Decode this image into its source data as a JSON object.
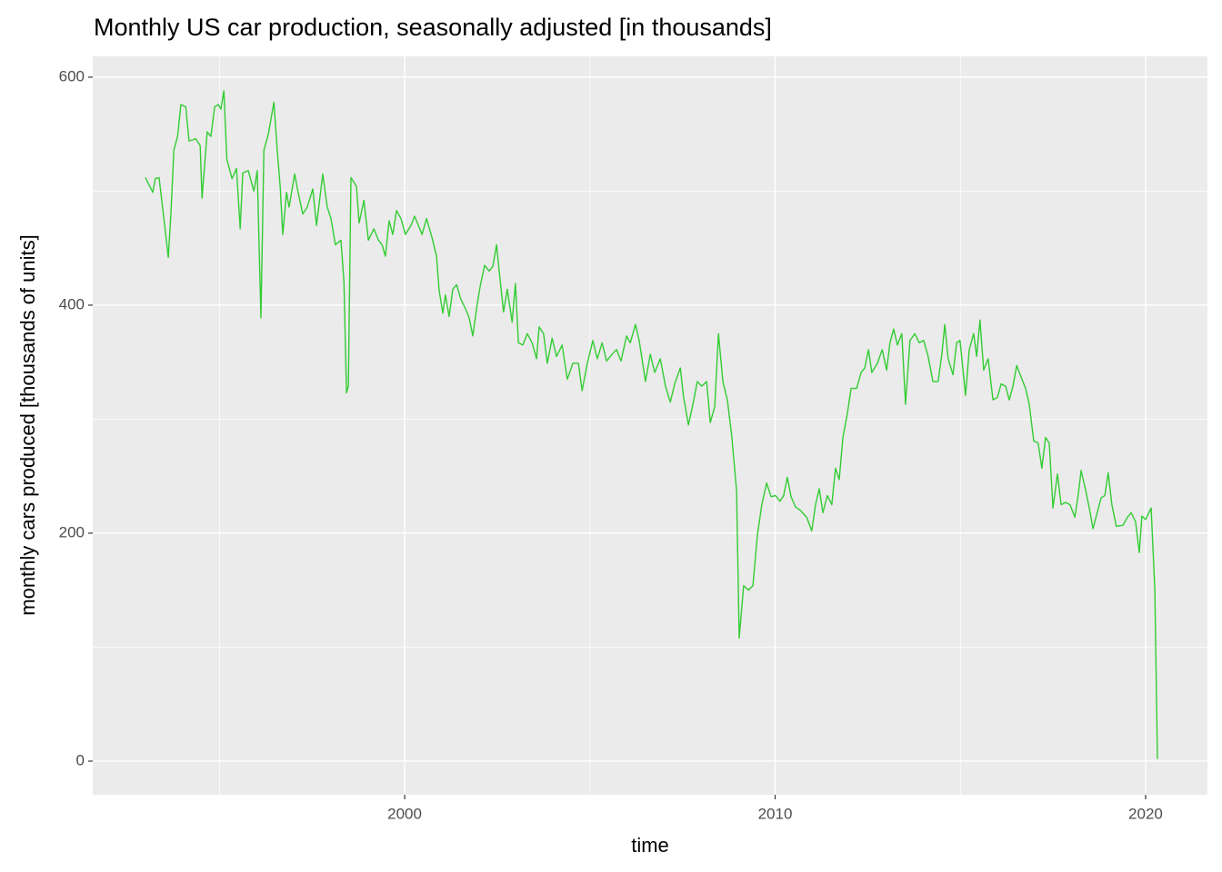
{
  "chart_data": {
    "type": "line",
    "title": "Monthly US car production, seasonally adjusted [in thousands]",
    "x_label": "time",
    "y_label": "monthly cars produced [thousands of units]",
    "xlim": [
      1991.58,
      2021.67
    ],
    "xticks": [
      2000,
      2010,
      2020
    ],
    "xminor": [
      1995,
      2005,
      2015
    ],
    "ylim": [
      -29.5,
      618.3
    ],
    "yticks": [
      0,
      200,
      400,
      600
    ],
    "yminor": [
      100,
      300,
      500
    ],
    "grid": true,
    "series": [
      {
        "name": "cars",
        "color": "#33cc33",
        "x": [
          1993.0,
          1993.2,
          1993.27,
          1993.37,
          1993.5,
          1993.62,
          1993.69,
          1993.77,
          1993.87,
          1993.96,
          1994.09,
          1994.18,
          1994.36,
          1994.48,
          1994.53,
          1994.67,
          1994.77,
          1994.87,
          1994.97,
          1995.04,
          1995.12,
          1995.2,
          1995.34,
          1995.46,
          1995.56,
          1995.63,
          1995.78,
          1995.93,
          1996.02,
          1996.12,
          1996.2,
          1996.32,
          1996.47,
          1996.56,
          1996.64,
          1996.71,
          1996.81,
          1996.88,
          1997.03,
          1997.13,
          1997.25,
          1997.37,
          1997.52,
          1997.62,
          1997.79,
          1997.91,
          1998.01,
          1998.13,
          1998.28,
          1998.36,
          1998.43,
          1998.48,
          1998.55,
          1998.7,
          1998.77,
          1998.9,
          1999.02,
          1999.17,
          1999.29,
          1999.39,
          1999.48,
          1999.58,
          1999.68,
          1999.78,
          1999.9,
          2000.02,
          2000.17,
          2000.27,
          2000.47,
          2000.59,
          2000.74,
          2000.86,
          2000.93,
          2001.03,
          2001.1,
          2001.2,
          2001.3,
          2001.4,
          2001.52,
          2001.64,
          2001.74,
          2001.84,
          2001.94,
          2002.04,
          2002.16,
          2002.28,
          2002.38,
          2002.48,
          2002.58,
          2002.67,
          2002.77,
          2002.9,
          2002.99,
          2003.07,
          2003.19,
          2003.31,
          2003.44,
          2003.56,
          2003.63,
          2003.75,
          2003.85,
          2003.98,
          2004.1,
          2004.25,
          2004.39,
          2004.54,
          2004.69,
          2004.79,
          2004.93,
          2005.08,
          2005.2,
          2005.33,
          2005.45,
          2005.6,
          2005.72,
          2005.84,
          2005.99,
          2006.09,
          2006.23,
          2006.33,
          2006.5,
          2006.63,
          2006.75,
          2006.9,
          2007.04,
          2007.17,
          2007.29,
          2007.44,
          2007.53,
          2007.66,
          2007.78,
          2007.9,
          2008.02,
          2008.15,
          2008.25,
          2008.37,
          2008.47,
          2008.59,
          2008.71,
          2008.83,
          2008.96,
          2009.03,
          2009.15,
          2009.28,
          2009.4,
          2009.52,
          2009.64,
          2009.77,
          2009.89,
          2010.01,
          2010.13,
          2010.23,
          2010.33,
          2010.43,
          2010.55,
          2010.68,
          2010.85,
          2010.99,
          2011.09,
          2011.19,
          2011.29,
          2011.41,
          2011.53,
          2011.63,
          2011.73,
          2011.83,
          2011.95,
          2012.05,
          2012.2,
          2012.32,
          2012.42,
          2012.52,
          2012.61,
          2012.76,
          2012.89,
          2013.01,
          2013.1,
          2013.2,
          2013.3,
          2013.42,
          2013.52,
          2013.64,
          2013.77,
          2013.89,
          2014.01,
          2014.13,
          2014.26,
          2014.4,
          2014.5,
          2014.58,
          2014.67,
          2014.8,
          2014.9,
          2014.99,
          2015.14,
          2015.24,
          2015.36,
          2015.44,
          2015.53,
          2015.63,
          2015.75,
          2015.88,
          2016.0,
          2016.1,
          2016.22,
          2016.32,
          2016.42,
          2016.52,
          2016.64,
          2016.76,
          2016.86,
          2016.98,
          2017.1,
          2017.2,
          2017.3,
          2017.4,
          2017.5,
          2017.62,
          2017.72,
          2017.84,
          2017.96,
          2018.09,
          2018.18,
          2018.26,
          2018.38,
          2018.48,
          2018.58,
          2018.67,
          2018.8,
          2018.9,
          2018.99,
          2019.09,
          2019.21,
          2019.39,
          2019.51,
          2019.61,
          2019.73,
          2019.83,
          2019.9,
          2020.0,
          2020.15,
          2020.25,
          2020.32
        ],
        "values": [
          512,
          499,
          511,
          512,
          476,
          442,
          480,
          536,
          548,
          576,
          574,
          544,
          546,
          540,
          494,
          552,
          548,
          574,
          576,
          572,
          588,
          528,
          511,
          520,
          467,
          516,
          518,
          500,
          518,
          389,
          536,
          550,
          578,
          536,
          504,
          462,
          499,
          486,
          515,
          498,
          480,
          486,
          502,
          470,
          515,
          486,
          476,
          453,
          457,
          421,
          323,
          329,
          512,
          504,
          472,
          492,
          457,
          467,
          457,
          453,
          443,
          474,
          462,
          483,
          476,
          462,
          470,
          478,
          462,
          476,
          459,
          443,
          413,
          393,
          409,
          390,
          414,
          418,
          405,
          397,
          389,
          373,
          397,
          417,
          435,
          430,
          434,
          453,
          421,
          394,
          414,
          385,
          419,
          367,
          365,
          375,
          367,
          353,
          381,
          375,
          349,
          371,
          355,
          365,
          335,
          349,
          349,
          325,
          349,
          369,
          353,
          367,
          351,
          357,
          361,
          351,
          373,
          367,
          383,
          369,
          333,
          357,
          341,
          353,
          329,
          315,
          331,
          345,
          319,
          295,
          313,
          333,
          329,
          333,
          297,
          311,
          375,
          333,
          317,
          285,
          237,
          108,
          154,
          150,
          154,
          198,
          225,
          244,
          232,
          233,
          228,
          233,
          249,
          232,
          223,
          220,
          214,
          202,
          225,
          239,
          218,
          233,
          225,
          257,
          247,
          284,
          305,
          327,
          327,
          341,
          345,
          361,
          341,
          349,
          361,
          343,
          367,
          379,
          365,
          375,
          313,
          369,
          375,
          367,
          369,
          355,
          333,
          333,
          357,
          383,
          353,
          339,
          367,
          369,
          321,
          361,
          375,
          355,
          387,
          343,
          353,
          317,
          319,
          331,
          329,
          317,
          329,
          347,
          337,
          327,
          313,
          281,
          279,
          257,
          284,
          279,
          222,
          252,
          225,
          227,
          225,
          214,
          233,
          255,
          238,
          222,
          204,
          215,
          231,
          233,
          253,
          225,
          206,
          207,
          214,
          218,
          210,
          183,
          215,
          212,
          222,
          150,
          2
        ]
      }
    ]
  }
}
